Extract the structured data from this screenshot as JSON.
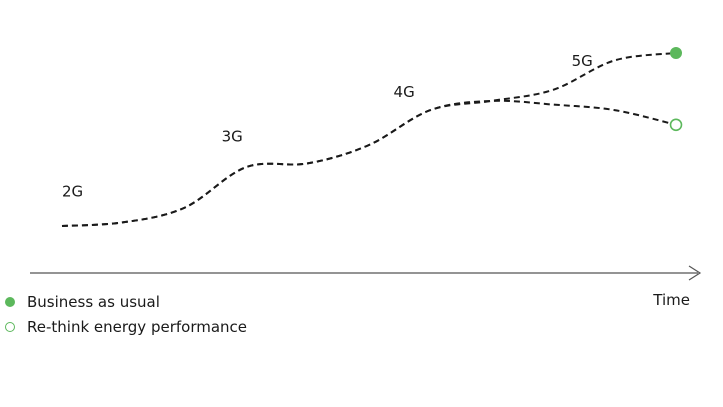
{
  "chart_data": {
    "type": "line",
    "title": "",
    "xlabel": "Time",
    "ylabel": "",
    "grid": false,
    "legend_placement": "bottom-left",
    "x": [
      0,
      1,
      2,
      3,
      4,
      5,
      6,
      7,
      8,
      9,
      10
    ],
    "generation_labels": [
      {
        "label": "2G",
        "x": 0.0,
        "y": 1.6
      },
      {
        "label": "3G",
        "x": 2.6,
        "y": 4.6
      },
      {
        "label": "4G",
        "x": 5.4,
        "y": 7.0
      },
      {
        "label": "5G",
        "x": 8.3,
        "y": 8.7
      }
    ],
    "series": [
      {
        "name": "Business as usual",
        "marker": "filled-circle",
        "color": "#5cb85c",
        "values": [
          0.0,
          0.2,
          1.0,
          3.2,
          3.4,
          4.4,
          6.3,
          6.8,
          7.4,
          9.0,
          9.4
        ]
      },
      {
        "name": "Re-think energy performance",
        "marker": "open-circle",
        "color": "#5cb85c",
        "values": [
          0.0,
          0.2,
          1.0,
          3.2,
          3.4,
          4.4,
          6.3,
          6.8,
          6.6,
          6.3,
          5.5
        ]
      }
    ],
    "xlim": [
      0,
      10
    ],
    "ylim": [
      0,
      10
    ]
  },
  "colors": {
    "line": "#1a1a1a",
    "axis": "#555555",
    "marker": "#5cb85c"
  }
}
